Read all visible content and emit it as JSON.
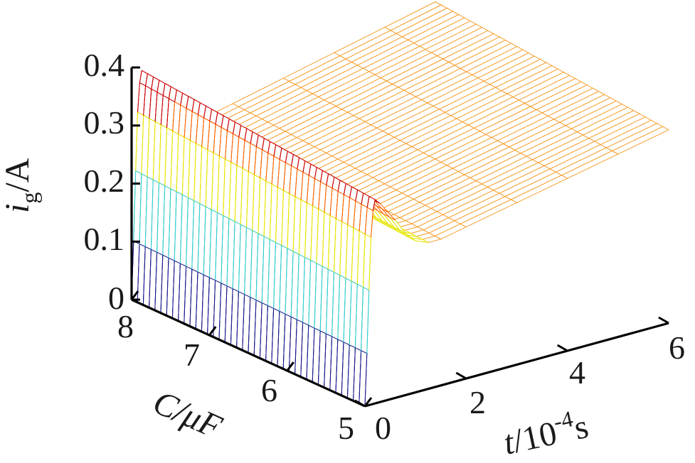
{
  "chart_data": {
    "type": "surface",
    "title": "",
    "zlabel": {
      "symbol": "i",
      "subscript": "g",
      "unit": "/A"
    },
    "xlabel": {
      "symbol": "t",
      "unit_prefix": "/10",
      "exponent": "-4",
      "unit": "s"
    },
    "ylabel": {
      "symbol": "C",
      "unit": "/μF"
    },
    "zlim": [
      0,
      0.4
    ],
    "xlim": [
      0,
      6
    ],
    "ylim": [
      5,
      8
    ],
    "z_ticks": [
      "0",
      "0.1",
      "0.2",
      "0.3",
      "0.4"
    ],
    "x_ticks": [
      "0",
      "2",
      "4",
      "6"
    ],
    "y_ticks": [
      "5",
      "6",
      "7",
      "8"
    ],
    "colormap": [
      "#1a1a8c",
      "#33cccc",
      "#e6e600",
      "#ff6600",
      "#cc0000",
      "#f5a030"
    ],
    "surface_profile": {
      "t": [
        0.0,
        0.04,
        0.08,
        0.12,
        0.16,
        0.2,
        0.3,
        0.45,
        0.6,
        0.8,
        1.0,
        1.25,
        1.5,
        2.0,
        3.0,
        4.0,
        5.0,
        6.0
      ],
      "i_g_at_C8": [
        0.0,
        0.1,
        0.22,
        0.32,
        0.37,
        0.39,
        0.38,
        0.36,
        0.34,
        0.31,
        0.29,
        0.28,
        0.28,
        0.29,
        0.31,
        0.33,
        0.35,
        0.37
      ]
    },
    "grid": "mesh"
  }
}
